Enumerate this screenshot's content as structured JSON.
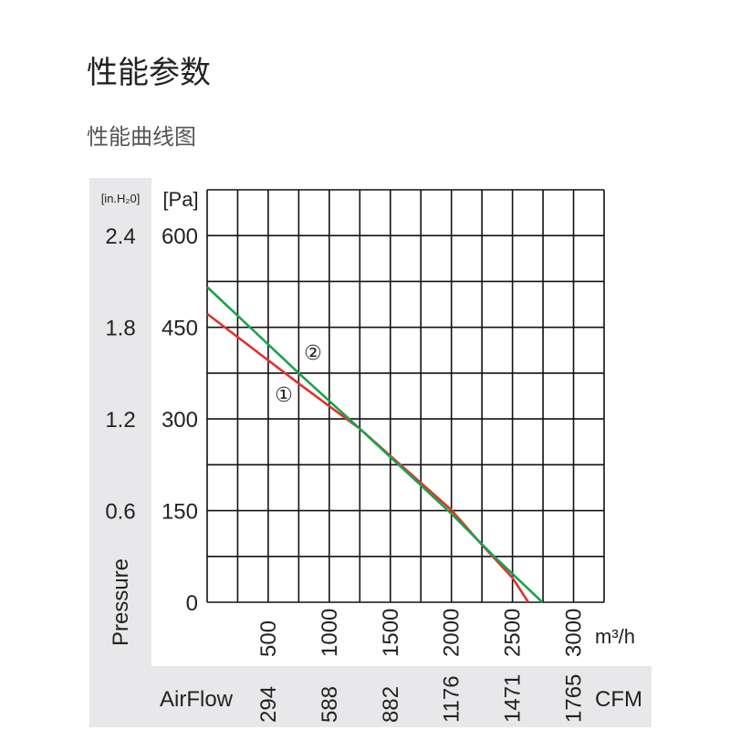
{
  "page": {
    "title": "性能参数",
    "subtitle": "性能曲线图"
  },
  "chart_data": {
    "type": "line",
    "xlabel": "AirFlow",
    "ylabel": "Pressure",
    "x_unit": "m³/h",
    "x_alt_unit": "CFM",
    "y_unit": "[Pa]",
    "y_alt_unit": "[in.H₂0]",
    "xlim": [
      0,
      3250
    ],
    "ylim": [
      0,
      675
    ],
    "grid": true,
    "x_ticks": [
      500,
      1000,
      1500,
      2000,
      2500,
      3000
    ],
    "x_alt_ticks": [
      "294",
      "588",
      "882",
      "1176",
      "1471",
      "1765"
    ],
    "y_ticks": [
      0,
      150,
      300,
      450,
      600
    ],
    "y_alt_ticks": [
      "0.6",
      "1.2",
      "1.8",
      "2.4"
    ],
    "series": [
      {
        "name": "①",
        "color": "#e0332f",
        "x": [
          0,
          750,
          1250,
          2000,
          2250,
          2500,
          2630
        ],
        "y": [
          472,
          358,
          284,
          151,
          94,
          40,
          0
        ]
      },
      {
        "name": "②",
        "color": "#1aa34a",
        "x": [
          0,
          750,
          1250,
          2000,
          2350,
          2745
        ],
        "y": [
          516,
          375,
          284,
          145,
          75,
          0
        ]
      }
    ]
  },
  "colors": {
    "band": "#e8e8ea",
    "grid": "#111111"
  }
}
